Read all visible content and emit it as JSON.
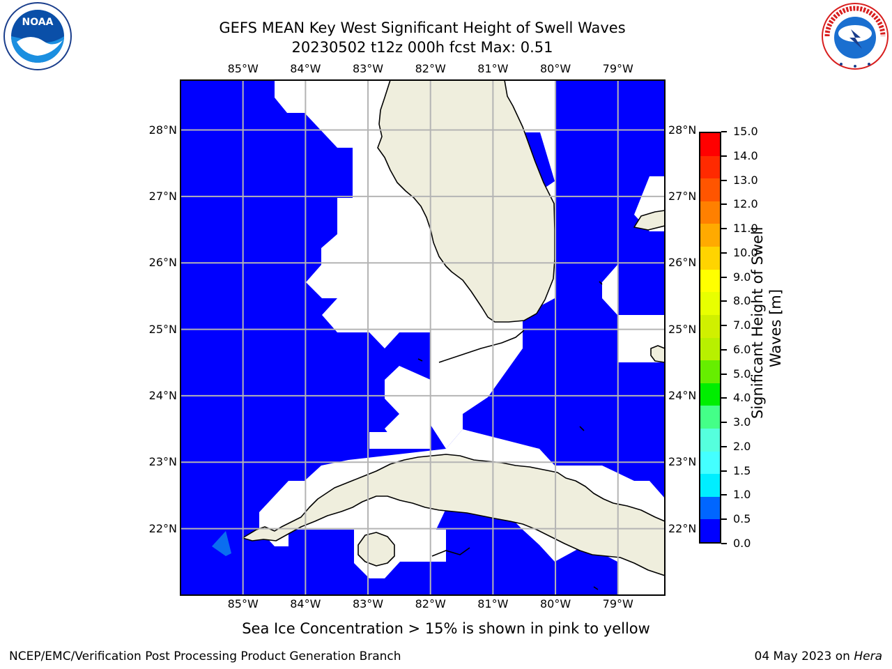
{
  "title": {
    "line1": "GEFS MEAN Key West Significant Height of Swell Waves",
    "line2": "20230502 t12z 000h fcst   Max: 0.51"
  },
  "logos": {
    "left": {
      "name": "noaa-logo",
      "text": "NOAA"
    },
    "right": {
      "name": "nws-logo",
      "text": "NATIONAL WEATHER SERVICE"
    }
  },
  "map": {
    "lon_range": [
      -86.0,
      -78.25
    ],
    "lat_range": [
      21.0,
      28.75
    ],
    "lon_ticks": [
      "85°W",
      "84°W",
      "83°W",
      "82°W",
      "81°W",
      "80°W",
      "79°W"
    ],
    "lat_ticks": [
      "28°N",
      "27°N",
      "26°N",
      "25°N",
      "24°N",
      "23°N",
      "22°N"
    ],
    "grid": true,
    "ocean_color": "#0000ff",
    "land_color": "#efeedd",
    "white_color": "#ffffff",
    "swell_patch_color": "#0a6ef0"
  },
  "colorbar": {
    "label": "Significant Height of Swell Waves [m]",
    "label_line1": "Significant Height of Swell",
    "label_line2": "Waves [m]",
    "ticks": [
      "15.0",
      "14.0",
      "13.0",
      "12.0",
      "11.0",
      "10.0",
      "9.0",
      "8.0",
      "7.0",
      "6.0",
      "5.0",
      "4.0",
      "3.0",
      "2.0",
      "1.5",
      "1.0",
      "0.5",
      "0.0"
    ],
    "colors": [
      "#ff0000",
      "#ff2a00",
      "#ff5500",
      "#ff8000",
      "#ffaa00",
      "#ffd400",
      "#ffff00",
      "#e8ff00",
      "#d0f000",
      "#b8f000",
      "#66ee00",
      "#00ee00",
      "#44ff88",
      "#55ffdd",
      "#44ffff",
      "#00eeff",
      "#0066ff",
      "#0000ff"
    ]
  },
  "note": "Sea Ice Concentration > 15% is shown in pink to yellow",
  "footer": {
    "left": "NCEP/EMC/Verification Post Processing Product Generation Branch",
    "right_prefix": "04 May 2023 on ",
    "right_host": "Hera"
  }
}
